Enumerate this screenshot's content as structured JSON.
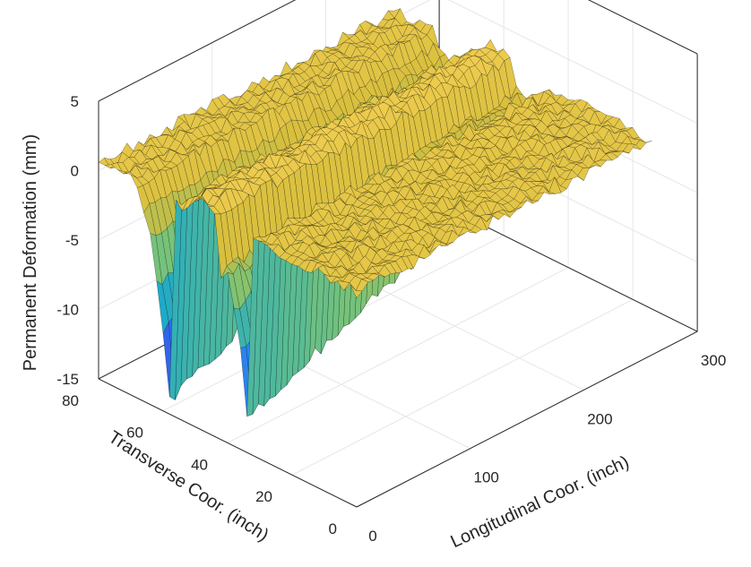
{
  "chart_data": {
    "type": "surface3d",
    "title": "",
    "xlabel": "Longitudinal Coor. (inch)",
    "ylabel": "Transverse Coor. (inch)",
    "zlabel": "Permanent Deformation (mm)",
    "xlim": [
      0,
      300
    ],
    "ylim": [
      0,
      80
    ],
    "zlim": [
      -15,
      5
    ],
    "x_ticks": [
      "0",
      "100",
      "200",
      "300"
    ],
    "y_ticks": [
      "0",
      "20",
      "40",
      "60",
      "80"
    ],
    "z_ticks": [
      "5",
      "0",
      "-5",
      "-10",
      "-15"
    ],
    "grid": true,
    "colormap": "parula",
    "x_extent": [
      0,
      260
    ],
    "transverse_profile": {
      "y": [
        0,
        4,
        8,
        12,
        16,
        20,
        24,
        28,
        30,
        32,
        34,
        36,
        38,
        40,
        42,
        44,
        46,
        48,
        50,
        52,
        54,
        56,
        58,
        60,
        62,
        64,
        66,
        68,
        70,
        72,
        76,
        80
      ],
      "z": [
        0.5,
        0.5,
        0.5,
        0.5,
        0.5,
        0.5,
        0.5,
        0.5,
        0.5,
        0.5,
        -12.5,
        -8,
        -5,
        -3,
        -3,
        1,
        1.5,
        1.5,
        1.5,
        1,
        0.5,
        0.5,
        -14,
        -9,
        -6,
        -3,
        -1,
        0.5,
        0.5,
        0.5,
        0.5,
        0.5
      ]
    },
    "rut_decay_toward_x_max": 0.72
  }
}
